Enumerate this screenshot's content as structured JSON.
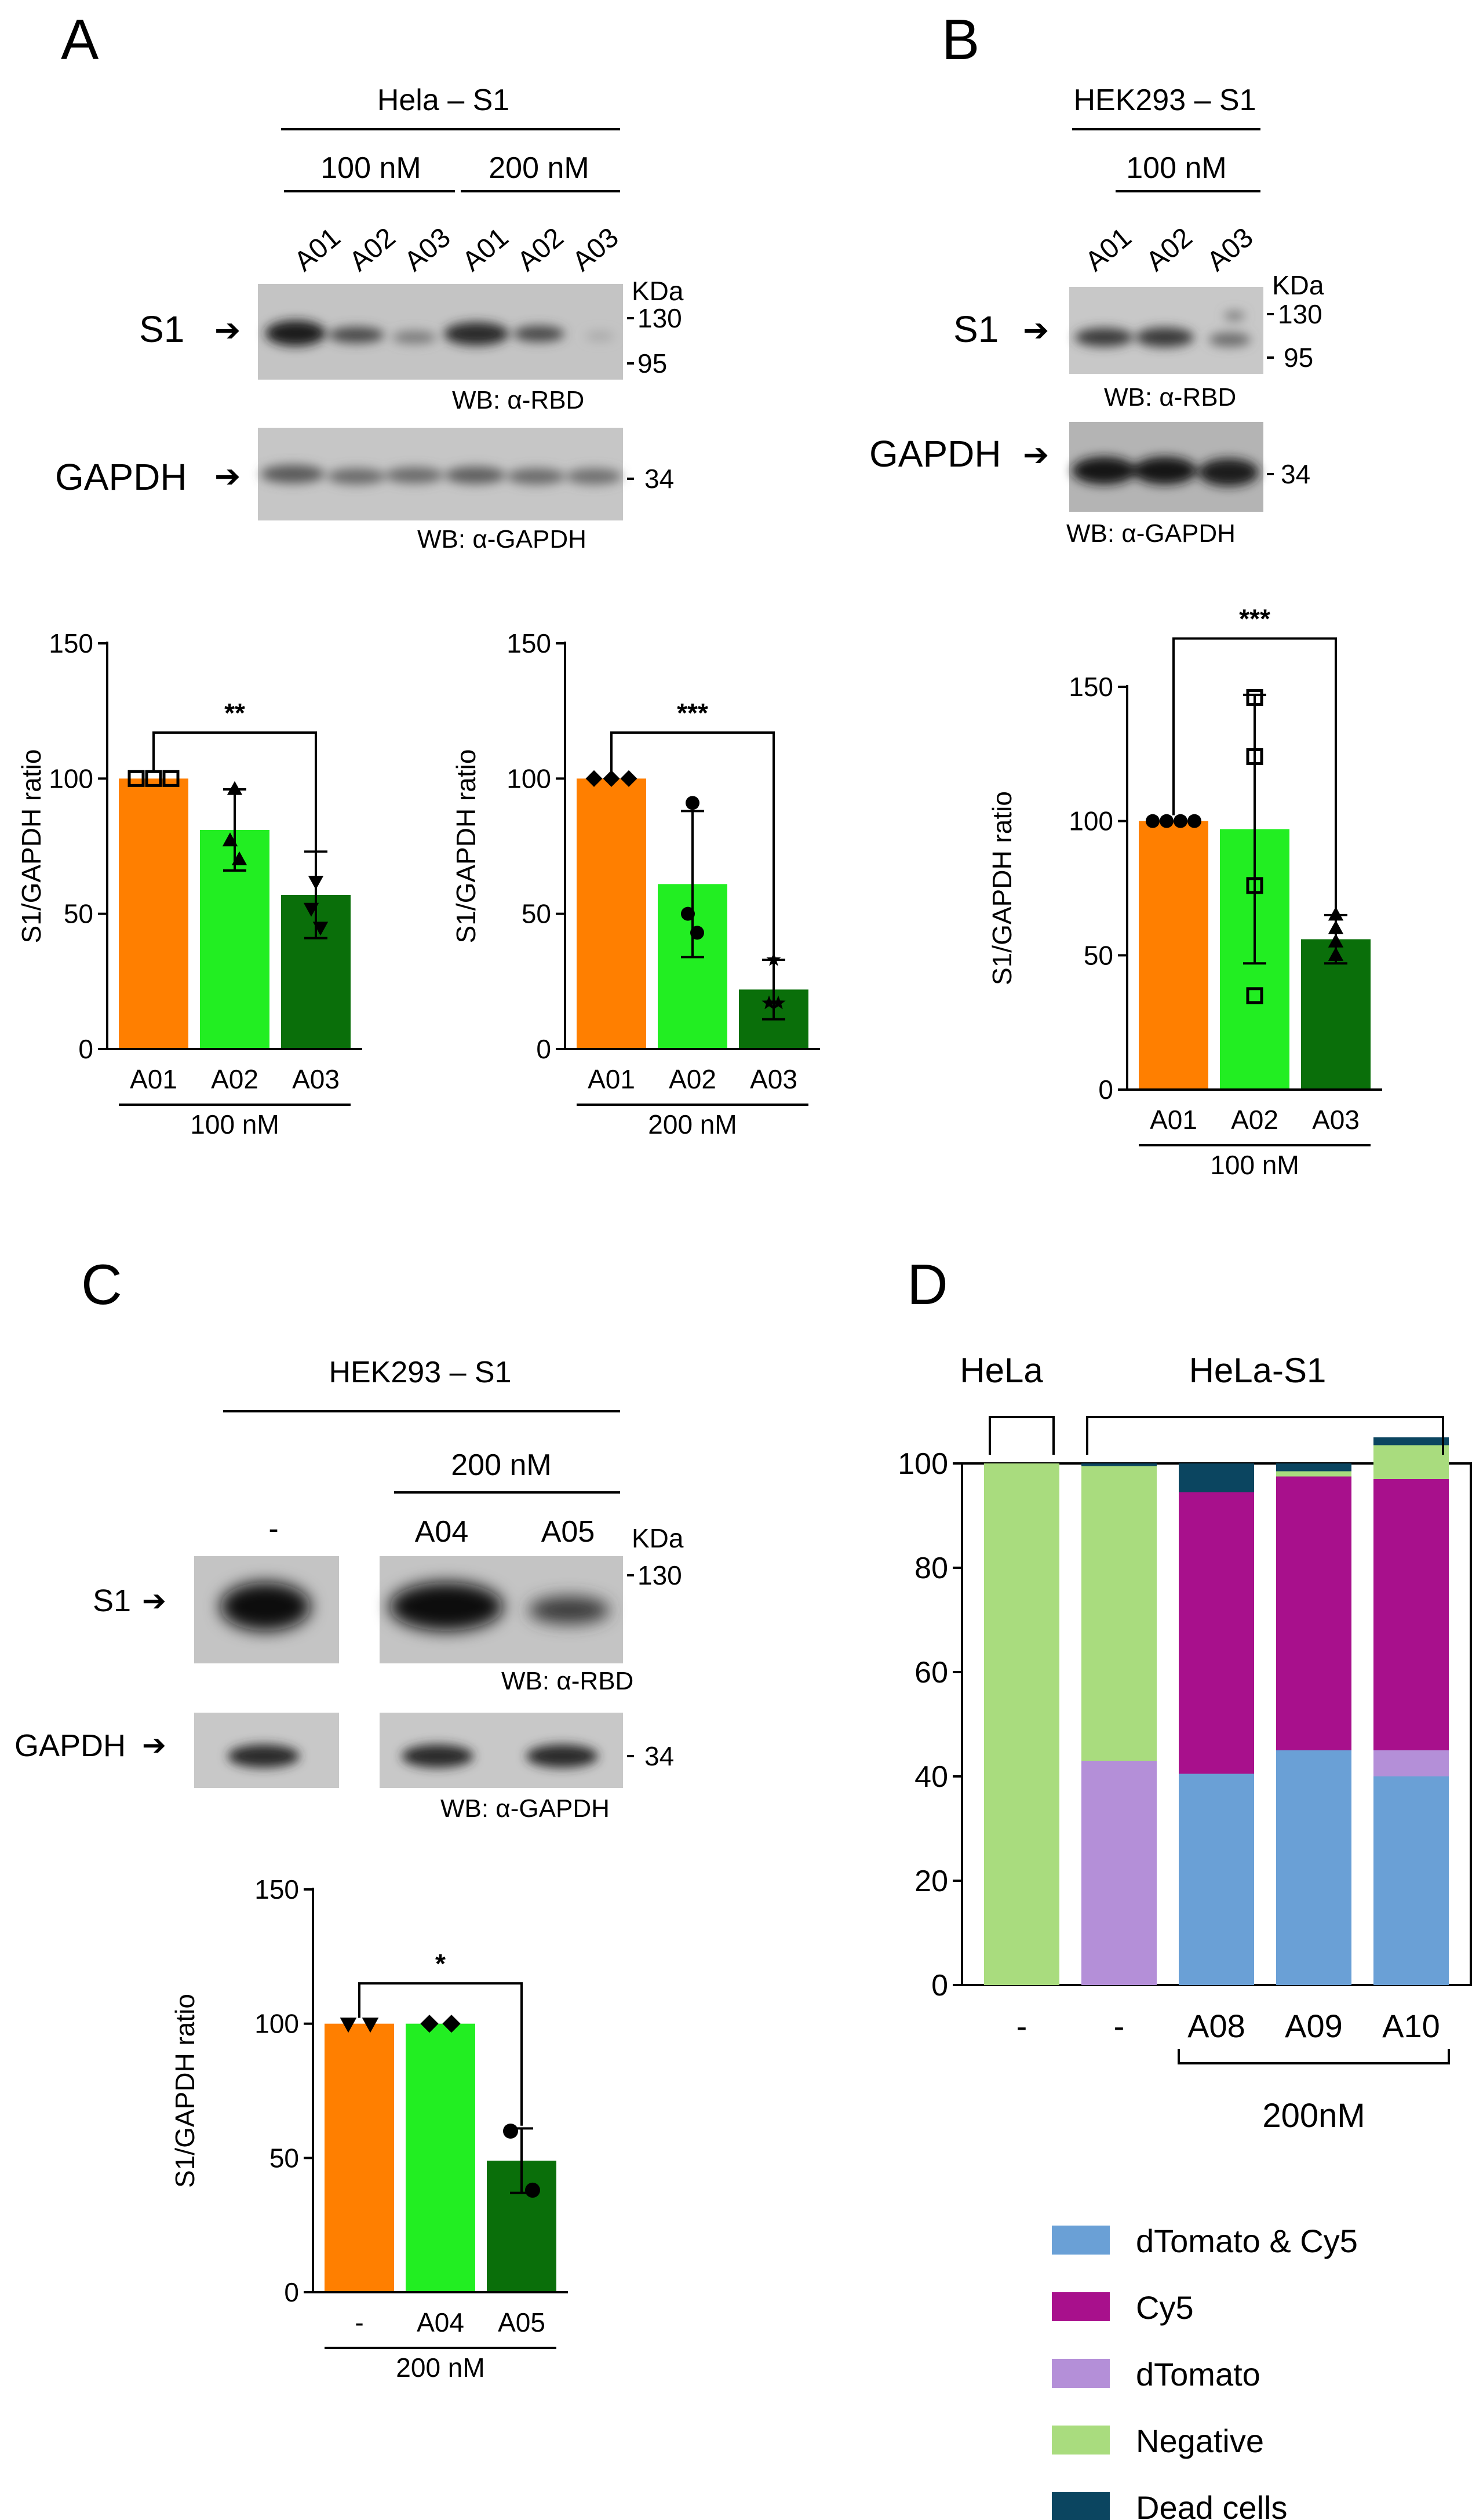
{
  "panels": {
    "A": {
      "letter": "A",
      "blot": {
        "cell_line": "Hela – S1",
        "conc_groups": [
          "100 nM",
          "200 nM"
        ],
        "lanes": [
          "A01",
          "A02",
          "A03",
          "A01",
          "A02",
          "A03"
        ],
        "kda": "KDa",
        "markers_s1": [
          "130",
          "95"
        ],
        "marker_gapdh": "34",
        "row_s1": "S1",
        "row_gapdh": "GAPDH",
        "wb_s1": "WB:  α-RBD",
        "wb_gapdh": "WB:  α-GAPDH"
      }
    },
    "B": {
      "letter": "B",
      "blot": {
        "cell_line": "HEK293 – S1",
        "conc": "100 nM",
        "lanes": [
          "A01",
          "A02",
          "A03"
        ],
        "kda": "KDa",
        "markers_s1": [
          "130",
          "95"
        ],
        "marker_gapdh": "34",
        "row_s1": "S1",
        "row_gapdh": "GAPDH",
        "wb_s1": "WB:  α-RBD",
        "wb_gapdh": "WB:  α-GAPDH"
      }
    },
    "C": {
      "letter": "C",
      "blot": {
        "cell_line": "HEK293 – S1",
        "conc": "200 nM",
        "lanes": [
          "-",
          "A04",
          "A05"
        ],
        "kda": "KDa",
        "marker_s1": "130",
        "marker_gapdh": "34",
        "row_s1": "S1",
        "row_gapdh": "GAPDH",
        "wb_s1": "WB:  α-RBD",
        "wb_gapdh": "WB:  α-GAPDH"
      }
    },
    "D": {
      "letter": "D",
      "groups": [
        "HeLa",
        "HeLa-S1"
      ],
      "treat_label": "200nM"
    }
  },
  "colors": {
    "orange": "#FF7F00",
    "light_green": "#22EE22",
    "dark_green": "#0A6F0A",
    "dtomato_cy5": "#6AA0D6",
    "cy5": "#A8108C",
    "dtomato": "#B48FD8",
    "negative": "#A9DC7E",
    "dead": "#0B4560"
  },
  "chart_data": [
    {
      "id": "A1",
      "type": "bar",
      "categories": [
        "A01",
        "A02",
        "A03"
      ],
      "values": [
        100,
        81,
        57
      ],
      "errors": [
        0,
        15,
        16
      ],
      "points": [
        [
          100,
          100,
          100
        ],
        [
          96,
          77,
          70
        ],
        [
          62,
          52,
          45
        ]
      ],
      "markers": [
        "square",
        "triangle",
        "triangle-down"
      ],
      "ylabel": "S1/GAPDH ratio",
      "ylim": [
        0,
        150
      ],
      "yticks": [
        0,
        50,
        100,
        150
      ],
      "group_label": "100 nM",
      "significance": "**",
      "bracket": [
        0,
        2
      ]
    },
    {
      "id": "A2",
      "type": "bar",
      "categories": [
        "A01",
        "A02",
        "A03"
      ],
      "values": [
        100,
        61,
        22
      ],
      "errors": [
        0,
        27,
        11
      ],
      "points": [
        [
          100,
          100,
          100
        ],
        [
          91,
          50,
          43
        ],
        [
          33,
          17,
          17
        ]
      ],
      "markers": [
        "diamond",
        "circle",
        "star"
      ],
      "ylabel": "S1/GAPDH ratio",
      "ylim": [
        0,
        150
      ],
      "yticks": [
        0,
        50,
        100,
        150
      ],
      "group_label": "200 nM",
      "significance": "***",
      "bracket": [
        0,
        2
      ]
    },
    {
      "id": "B",
      "type": "bar",
      "categories": [
        "A01",
        "A02",
        "A03"
      ],
      "values": [
        100,
        97,
        56
      ],
      "errors": [
        0,
        50,
        9
      ],
      "points": [
        [
          100,
          100,
          100,
          100
        ],
        [
          146,
          124,
          76,
          35
        ],
        [
          65,
          60,
          55,
          50
        ]
      ],
      "markers": [
        "circle",
        "square",
        "triangle"
      ],
      "ylabel": "S1/GAPDH ratio",
      "ylim": [
        0,
        150
      ],
      "yticks": [
        0,
        50,
        100,
        150
      ],
      "group_label": "100 nM",
      "significance": "***",
      "bracket": [
        0,
        2
      ]
    },
    {
      "id": "C",
      "type": "bar",
      "categories": [
        "-",
        "A04",
        "A05"
      ],
      "values": [
        100,
        100,
        49
      ],
      "errors": [
        0,
        0,
        12
      ],
      "points": [
        [
          100,
          100
        ],
        [
          100,
          100
        ],
        [
          60,
          38
        ]
      ],
      "markers": [
        "triangle-down",
        "diamond",
        "circle"
      ],
      "ylabel": "S1/GAPDH ratio",
      "ylim": [
        0,
        150
      ],
      "yticks": [
        0,
        50,
        100,
        150
      ],
      "group_label": "200 nM",
      "significance": "*",
      "bracket": [
        0,
        2
      ]
    },
    {
      "id": "D",
      "type": "bar",
      "stacked": true,
      "categories": [
        "-",
        "-",
        "A08",
        "A09",
        "A10"
      ],
      "series": [
        {
          "name": "dTomato & Cy5",
          "values": [
            0,
            0,
            40.5,
            45,
            40
          ]
        },
        {
          "name": "Cy5",
          "values": [
            0,
            0,
            54,
            52.5,
            52
          ]
        },
        {
          "name": "dTomato",
          "values": [
            0,
            43,
            0,
            0,
            5
          ]
        },
        {
          "name": "Negative",
          "values": [
            100,
            56.5,
            0,
            1,
            6.5
          ]
        },
        {
          "name": "Dead cells",
          "values": [
            0,
            0.5,
            5.5,
            1.5,
            1.5
          ]
        }
      ],
      "stack_order": [
        "dTomato & Cy5",
        "dTomato",
        "Cy5",
        "Negative",
        "Dead cells"
      ],
      "legend": [
        "dTomato & Cy5",
        "Cy5",
        "dTomato",
        "Negative",
        "Dead cells"
      ],
      "ylim": [
        0,
        100
      ],
      "yticks": [
        0,
        20,
        40,
        60,
        80,
        100
      ]
    }
  ]
}
